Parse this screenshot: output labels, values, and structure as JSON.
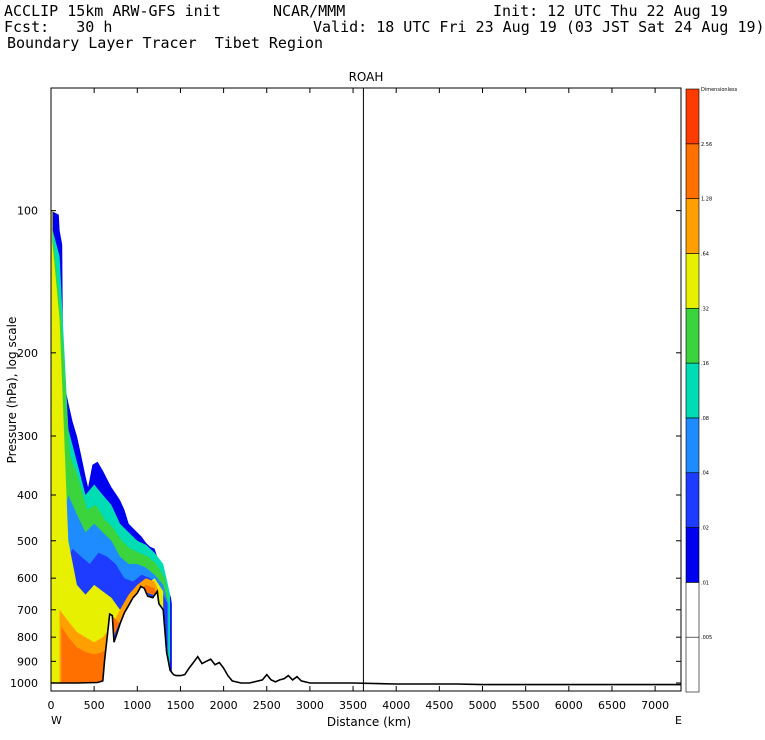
{
  "header": {
    "model": "ACCLIP 15km ARW-GFS init",
    "org": "NCAR/MMM",
    "init": "Init: 12 UTC Thu 22 Aug 19",
    "fcst": "Fcst:   30 h",
    "valid": "Valid: 18 UTC Fri 23 Aug 19 (03 JST Sat 24 Aug 19)",
    "product": "Boundary Layer Tracer  Tibet Region"
  },
  "chart_data": {
    "type": "heatmap",
    "title": "ROAH",
    "xlabel": "Distance (km)",
    "ylabel": "Pressure (hPa), log scale",
    "x_ticks": [
      0,
      500,
      1000,
      1500,
      2000,
      2500,
      3000,
      3500,
      4000,
      4500,
      5000,
      5500,
      6000,
      6500,
      7000
    ],
    "y_ticks": [
      100,
      200,
      300,
      400,
      500,
      600,
      700,
      800,
      900,
      1000
    ],
    "xlim": [
      0,
      7300
    ],
    "ylim": [
      1040,
      55
    ],
    "y_scale": "log",
    "end_labels": {
      "left": "W",
      "right": "E"
    },
    "marker_line_x": 3620,
    "colorbar": {
      "levels": [
        "",
        ".005",
        ".01",
        ".02",
        ".04",
        ".08",
        ".16",
        ".32",
        ".64",
        "1.28",
        "2.56",
        "Dimensionless"
      ],
      "colors": [
        "#ffffff",
        "#ffffff",
        "#0000f0",
        "#1e3cff",
        "#1e8cff",
        "#00dcb4",
        "#3cd43c",
        "#e6f000",
        "#ff9f00",
        "#ff7000",
        "#ff3c00"
      ]
    },
    "terrain": {
      "distance_km": [
        0,
        300,
        540,
        600,
        620,
        680,
        710,
        730,
        760,
        800,
        850,
        900,
        950,
        1000,
        1040,
        1080,
        1120,
        1180,
        1230,
        1250,
        1300,
        1340,
        1380,
        1420,
        1450,
        1500,
        1550,
        1600,
        1650,
        1700,
        1750,
        1800,
        1850,
        1900,
        1950,
        2000,
        2050,
        2100,
        2200,
        2300,
        2450,
        2500,
        2550,
        2600,
        2650,
        2700,
        2750,
        2800,
        2850,
        2900,
        3000,
        3500,
        4000,
        4700,
        5000,
        6000,
        7300
      ],
      "pressure_hpa": [
        1000,
        1000,
        998,
        990,
        900,
        715,
        720,
        820,
        790,
        750,
        710,
        685,
        660,
        645,
        625,
        630,
        655,
        660,
        640,
        680,
        700,
        860,
        940,
        960,
        965,
        965,
        960,
        930,
        905,
        880,
        910,
        900,
        890,
        915,
        905,
        930,
        965,
        990,
        1000,
        1000,
        985,
        960,
        985,
        995,
        985,
        980,
        965,
        985,
        970,
        990,
        1000,
        1000,
        1005,
        1005,
        1008,
        1008,
        1008
      ]
    },
    "tracer_envelope": {
      "distance_km": [
        0,
        90,
        100,
        130,
        140,
        160,
        200,
        250,
        300,
        350,
        400,
        430,
        480,
        540,
        600,
        650,
        700,
        740,
        800,
        850,
        900,
        950,
        1000,
        1050,
        1100,
        1150,
        1200,
        1230,
        1280,
        1320,
        1350,
        1390,
        1400
      ],
      "top_pressure_hpa": [
        100,
        102,
        110,
        118,
        210,
        235,
        255,
        280,
        300,
        330,
        365,
        385,
        345,
        340,
        355,
        370,
        385,
        395,
        410,
        430,
        460,
        470,
        480,
        490,
        505,
        515,
        520,
        540,
        570,
        610,
        625,
        660,
        680
      ]
    },
    "tracer_layers": [
      {
        "level_index": 5,
        "distance_km": [
          20,
          100,
          200,
          300,
          400,
          500,
          600,
          700,
          800,
          900,
          1000,
          1100,
          1200,
          1300,
          1380
        ],
        "top_pressure_hpa": [
          110,
          125,
          290,
          340,
          400,
          380,
          400,
          420,
          460,
          480,
          500,
          510,
          530,
          560,
          650
        ]
      },
      {
        "level_index": 6,
        "distance_km": [
          25,
          120,
          220,
          320,
          420,
          520,
          620,
          720,
          820,
          920,
          1020,
          1120,
          1220,
          1320,
          1360
        ],
        "top_pressure_hpa": [
          115,
          170,
          330,
          370,
          430,
          420,
          450,
          470,
          500,
          520,
          530,
          540,
          560,
          600,
          660
        ]
      },
      {
        "level_index": 4,
        "distance_km": [
          100,
          200,
          300,
          400,
          500,
          600,
          700,
          800,
          900,
          1000,
          1100,
          1200,
          1300,
          1360
        ],
        "top_pressure_hpa": [
          480,
          400,
          440,
          480,
          460,
          480,
          500,
          540,
          560,
          560,
          570,
          590,
          620,
          680
        ]
      },
      {
        "level_index": 3,
        "distance_km": [
          150,
          250,
          350,
          450,
          550,
          650,
          750,
          850,
          950,
          1050,
          1150,
          1250,
          1350
        ],
        "top_pressure_hpa": [
          560,
          520,
          540,
          560,
          530,
          540,
          560,
          600,
          610,
          590,
          600,
          620,
          680
        ]
      },
      {
        "level_index": 7,
        "distance_km": [
          0,
          100,
          200,
          300,
          400,
          500,
          600,
          700,
          800,
          900,
          1000,
          1100,
          1200,
          1300
        ],
        "top_pressure_hpa": [
          108,
          170,
          500,
          620,
          650,
          620,
          640,
          660,
          700,
          680,
          640,
          620,
          600,
          640
        ]
      },
      {
        "level_index": 8,
        "distance_km": [
          100,
          200,
          300,
          400,
          500,
          600,
          700,
          800,
          900,
          1000,
          1100,
          1200,
          1250
        ],
        "top_pressure_hpa": [
          700,
          740,
          780,
          800,
          820,
          800,
          760,
          700,
          650,
          620,
          600,
          610,
          640
        ]
      },
      {
        "level_index": 9,
        "distance_km": [
          120,
          200,
          300,
          400,
          500,
          600,
          700,
          800,
          900,
          1000,
          1100,
          1200,
          1230
        ],
        "top_pressure_hpa": [
          760,
          800,
          840,
          860,
          870,
          860,
          820,
          740,
          690,
          640,
          620,
          630,
          660
        ]
      }
    ]
  }
}
